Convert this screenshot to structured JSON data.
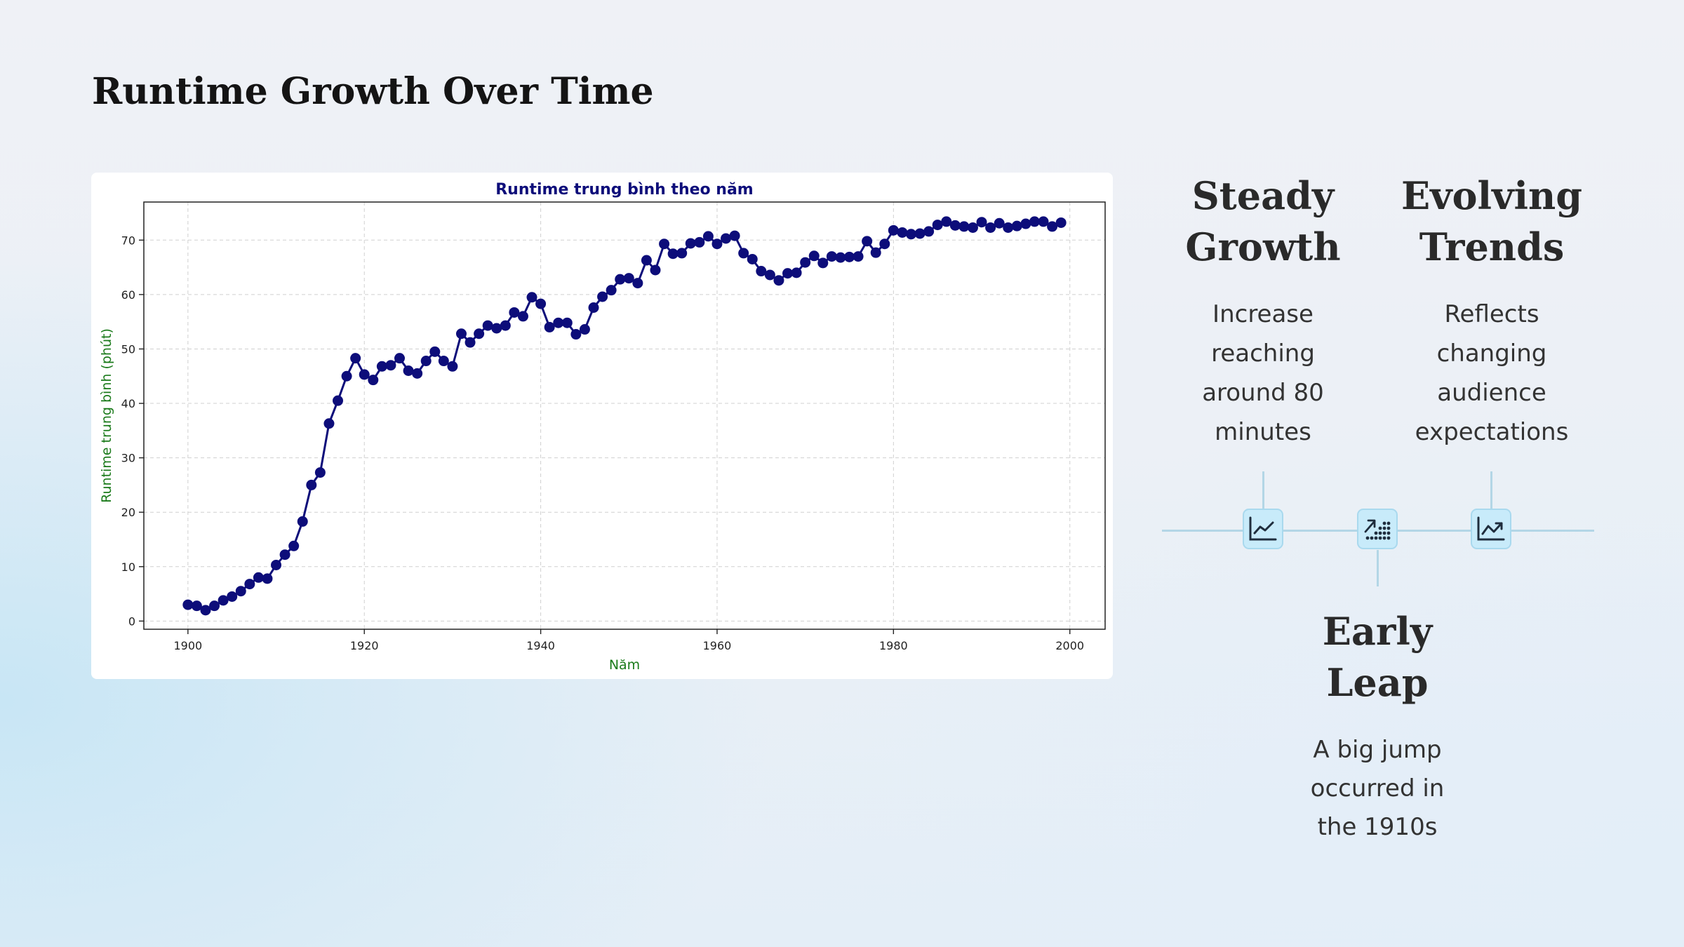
{
  "page": {
    "title": "Runtime Growth Over Time"
  },
  "chart_data": {
    "type": "line",
    "title": "Runtime trung bình theo năm",
    "xlabel": "Năm",
    "ylabel": "Runtime trung bình (phút)",
    "xlim": [
      1895,
      2004
    ],
    "ylim": [
      -1.5,
      77
    ],
    "grid": true,
    "line_color": "#0d0d7a",
    "title_color": "#0d0d7a",
    "label_color": "#1a7a1a",
    "x_ticks": [
      1900,
      1920,
      1940,
      1960,
      1980,
      2000
    ],
    "y_ticks": [
      0,
      10,
      20,
      30,
      40,
      50,
      60,
      70
    ],
    "x": [
      1900,
      1901,
      1902,
      1903,
      1904,
      1905,
      1906,
      1907,
      1908,
      1909,
      1910,
      1911,
      1912,
      1913,
      1914,
      1915,
      1916,
      1917,
      1918,
      1919,
      1920,
      1921,
      1922,
      1923,
      1924,
      1925,
      1926,
      1927,
      1928,
      1929,
      1930,
      1931,
      1932,
      1933,
      1934,
      1935,
      1936,
      1937,
      1938,
      1939,
      1940,
      1941,
      1942,
      1943,
      1944,
      1945,
      1946,
      1947,
      1948,
      1949,
      1950,
      1951,
      1952,
      1953,
      1954,
      1955,
      1956,
      1957,
      1958,
      1959,
      1960,
      1961,
      1962,
      1963,
      1964,
      1965,
      1966,
      1967,
      1968,
      1969,
      1970,
      1971,
      1972,
      1973,
      1974,
      1975,
      1976,
      1977,
      1978,
      1979,
      1980,
      1981,
      1982,
      1983,
      1984,
      1985,
      1986,
      1987,
      1988,
      1989,
      1990,
      1991,
      1992,
      1993,
      1994,
      1995,
      1996,
      1997,
      1998,
      1999
    ],
    "series": [
      {
        "values": [
          3.0,
          2.8,
          2.0,
          2.8,
          3.8,
          4.5,
          5.5,
          6.8,
          8.0,
          7.8,
          10.3,
          12.2,
          13.8,
          18.3,
          25.0,
          27.3,
          36.3,
          40.5,
          45.0,
          48.3,
          45.3,
          44.3,
          46.8,
          47.0,
          48.3,
          46.0,
          45.5,
          47.8,
          49.5,
          47.8,
          46.8,
          52.8,
          51.2,
          52.8,
          54.3,
          53.8,
          54.3,
          56.7,
          56.0,
          59.5,
          58.3,
          54.0,
          54.8,
          54.8,
          52.7,
          53.6,
          57.6,
          59.6,
          60.8,
          62.8,
          63.0,
          62.1,
          66.3,
          64.5,
          69.3,
          67.5,
          67.6,
          69.4,
          69.6,
          70.7,
          69.3,
          70.3,
          70.8,
          67.6,
          66.5,
          64.3,
          63.6,
          62.6,
          63.9,
          64.0,
          65.9,
          67.1,
          65.8,
          67.0,
          66.8,
          66.9,
          67.0,
          69.8,
          67.7,
          69.3,
          71.8,
          71.4,
          71.1,
          71.2,
          71.6,
          72.8,
          73.4,
          72.7,
          72.5,
          72.3,
          73.3,
          72.3,
          73.1,
          72.3,
          72.6,
          73.0,
          73.4,
          73.4,
          72.5,
          73.2
        ]
      }
    ]
  },
  "columns": {
    "steady": {
      "heading_line1": "Steady",
      "heading_line2": "Growth",
      "desc": [
        "Increase",
        "reaching",
        "around 80",
        "minutes"
      ],
      "icon": "line-chart-icon"
    },
    "evolving": {
      "heading_line1": "Evolving",
      "heading_line2": "Trends",
      "desc": [
        "Reflects",
        "changing",
        "audience",
        "expectations"
      ],
      "icon": "trend-up-chart-icon"
    },
    "early": {
      "heading_line1": "Early",
      "heading_line2": "Leap",
      "desc": [
        "A big jump",
        "occurred in",
        "the 1910s"
      ],
      "icon": "scatter-trend-icon"
    }
  }
}
